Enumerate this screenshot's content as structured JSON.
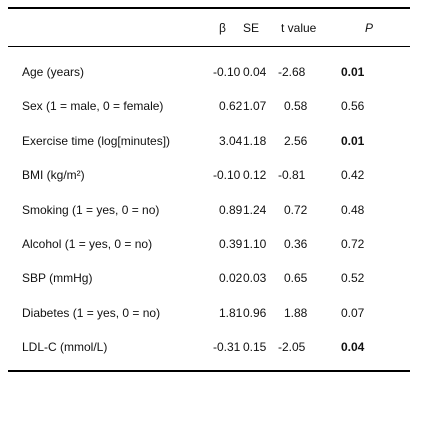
{
  "table": {
    "header": [
      "β",
      "SE",
      "t value",
      "P"
    ],
    "rows": [
      [
        "Age (years)",
        "-0.10",
        "0.04",
        "-2.68",
        "0.01"
      ],
      [
        "Sex (1 = male, 0 = female)",
        "0.62",
        "1.07",
        "0.58",
        "0.56"
      ],
      [
        "Exercise time (log[minutes])",
        "3.04",
        "1.18",
        "2.56",
        "0.01"
      ],
      [
        "BMI (kg/m²)",
        "-0.10",
        "0.12",
        "-0.81",
        "0.42"
      ],
      [
        "Smoking (1 = yes, 0 = no)",
        "0.89",
        "1.24",
        "0.72",
        "0.48"
      ],
      [
        "Alcohol (1 = yes, 0 = no)",
        "0.39",
        "1.10",
        "0.36",
        "0.72"
      ],
      [
        "SBP (mmHg)",
        "0.02",
        "0.03",
        "0.65",
        "0.52"
      ],
      [
        "Diabetes (1 = yes, 0 = no)",
        "1.81",
        "0.96",
        "1.88",
        "0.07"
      ],
      [
        "LDL-C (mmol/L)",
        "-0.31",
        "0.15",
        "-2.05",
        "0.04"
      ]
    ]
  }
}
